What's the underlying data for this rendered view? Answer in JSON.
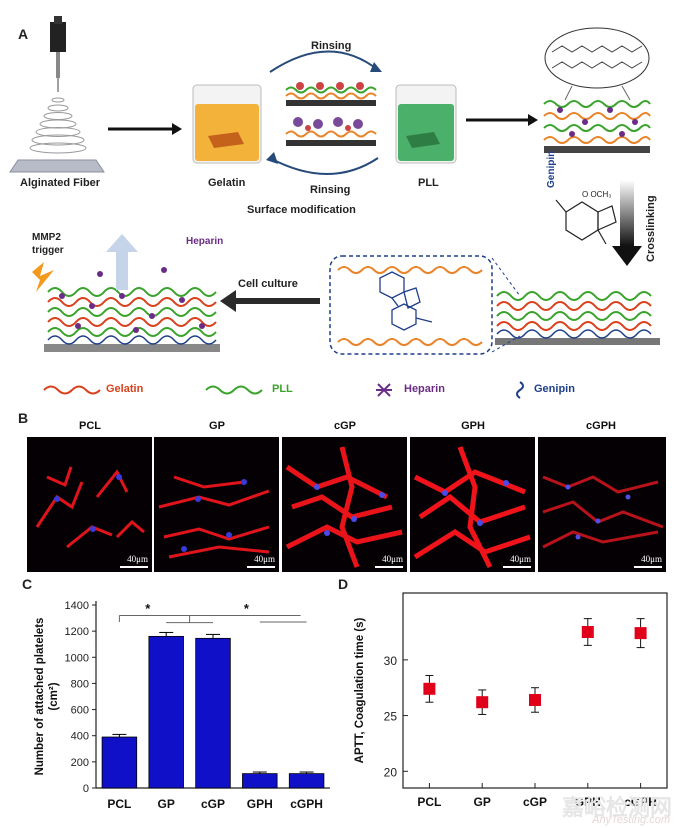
{
  "panel_a": {
    "letter": "A",
    "steps": {
      "alginated_fiber": "Alginated Fiber",
      "gelatin": "Gelatin",
      "pll": "PLL",
      "rinsing_top": "Rinsing",
      "rinsing_bottom": "Rinsing",
      "surface_modification": "Surface modification",
      "genipin": "Genipin",
      "crosslinking": "Crosslinking",
      "cell_culture": "Cell culture",
      "mmp2_trigger_1": "MMP2",
      "mmp2_trigger_2": "trigger",
      "heparin": "Heparin",
      "genipin_formula": "O OCH₃"
    },
    "legend": [
      {
        "label": "Gelatin",
        "color": "#d9401c"
      },
      {
        "label": "PLL",
        "color": "#3aa32c"
      },
      {
        "label": "Heparin",
        "color": "#6a2c86"
      },
      {
        "label": "Genipin",
        "color": "#1f3e8a"
      }
    ]
  },
  "panel_b": {
    "letter": "B",
    "images": [
      {
        "title": "PCL",
        "scale": "40μm"
      },
      {
        "title": "GP",
        "scale": "40μm"
      },
      {
        "title": "cGP",
        "scale": "40μm"
      },
      {
        "title": "GPH",
        "scale": "40μm"
      },
      {
        "title": "cGPH",
        "scale": "40μm"
      }
    ]
  },
  "chart_data": [
    {
      "panel": "C",
      "type": "bar",
      "categories": [
        "PCL",
        "GP",
        "cGP",
        "GPH",
        "cGPH"
      ],
      "values": [
        390,
        1160,
        1145,
        110,
        110
      ],
      "errors": [
        20,
        30,
        30,
        12,
        12
      ],
      "ylabel_line1": "Number of attached platelets",
      "ylabel_line2": "(cm²)",
      "ylim": [
        0,
        1400
      ],
      "yticks": [
        0,
        200,
        400,
        600,
        800,
        1000,
        1200,
        1400
      ],
      "significance": [
        "*",
        "*"
      ],
      "bar_color": "#1010c8"
    },
    {
      "panel": "D",
      "type": "scatter",
      "categories": [
        "PCL",
        "GP",
        "cGP",
        "GPH",
        "cGPH"
      ],
      "values": [
        27.4,
        26.2,
        26.4,
        32.5,
        32.4
      ],
      "errors": [
        1.2,
        1.1,
        1.1,
        1.2,
        1.3
      ],
      "ylabel": "APTT, Coagulation time (s)",
      "ylim": [
        18.5,
        36
      ],
      "yticks": [
        20,
        25,
        30
      ],
      "marker_color": "#e0001a"
    }
  ],
  "watermark": {
    "cn": "嘉峪检测网",
    "en": "AnyTesting.com"
  }
}
